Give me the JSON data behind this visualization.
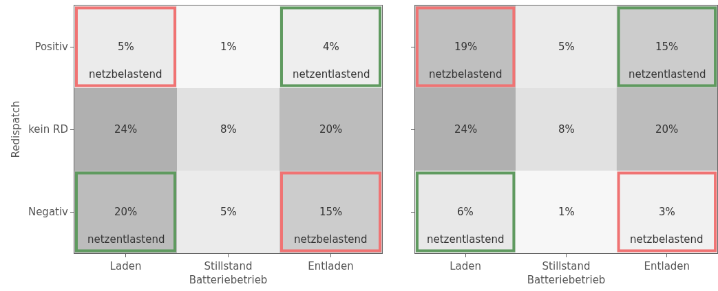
{
  "chart_data": [
    {
      "type": "heatmap",
      "ylabel": "Redispatch",
      "categories": [
        "Laden",
        "Stillstand\nBatteriebetrieb",
        "Entladen"
      ],
      "y_categories": [
        "Positiv",
        "kein RD",
        "Negativ"
      ],
      "cells": [
        [
          5,
          1,
          4
        ],
        [
          24,
          8,
          20
        ],
        [
          20,
          5,
          15
        ]
      ],
      "cell_labels": [
        [
          "5%",
          "1%",
          "4%"
        ],
        [
          "24%",
          "8%",
          "20%"
        ],
        [
          "20%",
          "5%",
          "15%"
        ]
      ],
      "annotations": [
        "netzbelastend",
        "netzentlastend",
        "netzentlastend",
        "netzbelastend"
      ]
    },
    {
      "type": "heatmap",
      "categories": [
        "Laden",
        "Stillstand\nBatteriebetrieb",
        "Entladen"
      ],
      "y_categories": [
        null,
        null,
        null
      ],
      "tick_labels": "x",
      "cells": [
        [
          19,
          5,
          15
        ],
        [
          24,
          8,
          20
        ],
        [
          6,
          1,
          3
        ]
      ],
      "cell_labels": [
        [
          "19%",
          "5%",
          "15%"
        ],
        [
          "24%",
          "8%",
          "20%"
        ],
        [
          "6%",
          "1%",
          "3%"
        ]
      ],
      "annotations": [
        "netzbelastend",
        "netzentlastend",
        "netzentlastend",
        "netzbelastend"
      ]
    }
  ]
}
